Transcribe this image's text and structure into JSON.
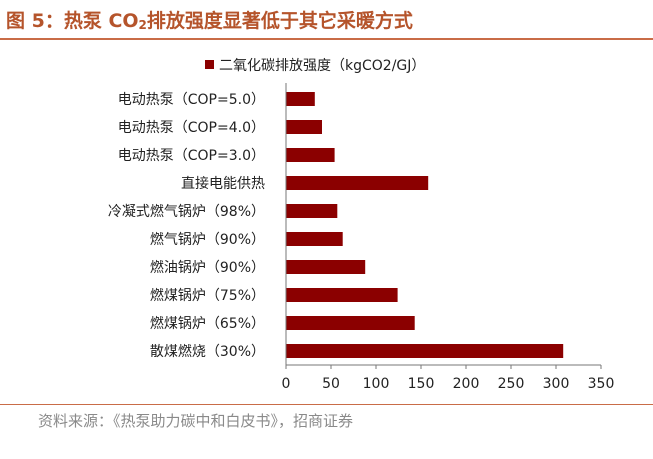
{
  "header": {
    "title_main": "图 5：热泵 CO",
    "title_sub": "2",
    "title_rest": "排放强度显著低于其它采暖方式"
  },
  "footer": {
    "source": "资料来源：《热泵助力碳中和白皮书》，招商证券"
  },
  "colors": {
    "bar": "#8b0000",
    "title": "#b5542b",
    "rule": "#c96c47"
  },
  "chart_data": {
    "type": "bar",
    "orientation": "horizontal",
    "title": "",
    "xlabel": "",
    "ylabel": "",
    "legend": "top-center",
    "grid": false,
    "xlim": [
      0,
      350
    ],
    "xticks": [
      "0",
      "50",
      "100",
      "150",
      "200",
      "250",
      "300",
      "350"
    ],
    "categories": [
      "电动热泵（COP=5.0）",
      "电动热泵（COP=4.0）",
      "电动热泵（COP=3.0）",
      "直接电能供热",
      "冷凝式燃气锅炉（98%）",
      "燃气锅炉（90%）",
      "燃油锅炉（90%）",
      "燃煤锅炉（75%）",
      "燃煤锅炉（65%）",
      "散煤燃烧（30%）"
    ],
    "series": [
      {
        "name": "二氧化碳排放强度（kgCO2/GJ）",
        "values": [
          32,
          40,
          54,
          158,
          57,
          63,
          88,
          124,
          143,
          308
        ]
      }
    ]
  }
}
